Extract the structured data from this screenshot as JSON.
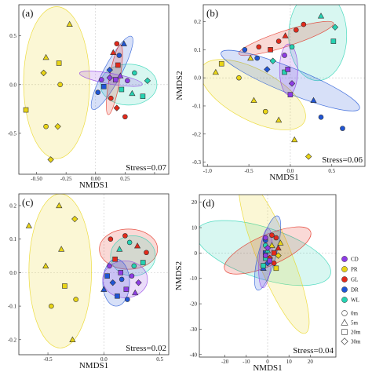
{
  "colors": {
    "CD": "#8e3ce6",
    "PR": "#e8d416",
    "GL": "#e22a1c",
    "DR": "#1f55d6",
    "WL": "#25d2b2"
  },
  "legend": {
    "groups": [
      "CD",
      "PR",
      "GL",
      "DR",
      "WL"
    ],
    "depths": [
      "0m",
      "5m",
      "20m",
      "30m"
    ],
    "depth_symbols": [
      "circle",
      "triangle",
      "square",
      "diamond"
    ]
  },
  "chart_data": [
    {
      "type": "scatter",
      "panel_label": "(a)",
      "xlabel": "NMDS1",
      "ylabel": "NMDS2",
      "annotation": "Stress=0.07",
      "xlim": [
        -0.65,
        0.62
      ],
      "ylim": [
        -0.92,
        0.82
      ],
      "xticks": [
        -0.5,
        -0.25,
        0.0,
        0.25,
        0.5
      ],
      "xtick_labels": [
        "-0.50",
        "-0.25",
        "0.00",
        "0.25",
        ""
      ],
      "yticks": [
        0.5,
        0.0,
        -0.5
      ],
      "ytick_labels": [
        "0.5",
        "0.0",
        "-0.5"
      ],
      "ellipses": [
        {
          "group": "PR",
          "cx": -0.33,
          "cy": 0.02,
          "rx": 0.28,
          "ry": 0.78,
          "angle": 0
        },
        {
          "group": "WL",
          "cx": 0.28,
          "cy": 0.0,
          "rx": 0.24,
          "ry": 0.21,
          "angle": 0
        },
        {
          "group": "DR",
          "cx": 0.14,
          "cy": 0.12,
          "rx": 0.35,
          "ry": 0.09,
          "angle": 62
        },
        {
          "group": "GL",
          "cx": 0.16,
          "cy": 0.05,
          "rx": 0.3,
          "ry": 0.055,
          "angle": 80
        },
        {
          "group": "CD",
          "cx": 0.13,
          "cy": 0.06,
          "rx": 0.27,
          "ry": 0.055,
          "angle": -10
        }
      ],
      "points": [
        {
          "group": "PR",
          "shape": "triangle",
          "x": -0.22,
          "y": 0.62
        },
        {
          "group": "PR",
          "shape": "triangle",
          "x": -0.42,
          "y": 0.28
        },
        {
          "group": "PR",
          "shape": "square",
          "x": -0.31,
          "y": 0.22
        },
        {
          "group": "PR",
          "shape": "diamond",
          "x": -0.44,
          "y": 0.12
        },
        {
          "group": "PR",
          "shape": "circle",
          "x": -0.3,
          "y": 0.0
        },
        {
          "group": "PR",
          "shape": "square",
          "x": -0.59,
          "y": -0.26
        },
        {
          "group": "PR",
          "shape": "circle",
          "x": -0.42,
          "y": -0.43
        },
        {
          "group": "PR",
          "shape": "diamond",
          "x": -0.32,
          "y": -0.43
        },
        {
          "group": "PR",
          "shape": "diamond",
          "x": -0.38,
          "y": -0.77
        },
        {
          "group": "DR",
          "shape": "circle",
          "x": 0.02,
          "y": -0.08
        },
        {
          "group": "DR",
          "shape": "square",
          "x": 0.07,
          "y": -0.02
        },
        {
          "group": "DR",
          "shape": "diamond",
          "x": 0.12,
          "y": 0.15
        },
        {
          "group": "DR",
          "shape": "circle",
          "x": 0.2,
          "y": 0.3
        },
        {
          "group": "DR",
          "shape": "triangle",
          "x": 0.24,
          "y": 0.42
        },
        {
          "group": "GL",
          "shape": "circle",
          "x": 0.18,
          "y": 0.42
        },
        {
          "group": "GL",
          "shape": "triangle",
          "x": 0.15,
          "y": 0.33
        },
        {
          "group": "GL",
          "shape": "square",
          "x": 0.19,
          "y": 0.2
        },
        {
          "group": "GL",
          "shape": "circle",
          "x": 0.13,
          "y": -0.14
        },
        {
          "group": "GL",
          "shape": "diamond",
          "x": 0.18,
          "y": -0.24
        },
        {
          "group": "GL",
          "shape": "circle",
          "x": 0.25,
          "y": -0.33
        },
        {
          "group": "CD",
          "shape": "circle",
          "x": 0.05,
          "y": 0.05
        },
        {
          "group": "CD",
          "shape": "diamond",
          "x": 0.12,
          "y": 0.07
        },
        {
          "group": "CD",
          "shape": "square",
          "x": 0.17,
          "y": 0.05
        },
        {
          "group": "CD",
          "shape": "triangle",
          "x": 0.21,
          "y": 0.09
        },
        {
          "group": "CD",
          "shape": "circle",
          "x": 0.27,
          "y": 0.04
        },
        {
          "group": "WL",
          "shape": "circle",
          "x": 0.33,
          "y": 0.12
        },
        {
          "group": "WL",
          "shape": "diamond",
          "x": 0.44,
          "y": 0.04
        },
        {
          "group": "WL",
          "shape": "square",
          "x": 0.22,
          "y": -0.05
        },
        {
          "group": "WL",
          "shape": "triangle",
          "x": 0.31,
          "y": -0.09
        },
        {
          "group": "WL",
          "shape": "square",
          "x": 0.4,
          "y": -0.12
        }
      ]
    },
    {
      "type": "scatter",
      "panel_label": "(b)",
      "xlabel": "NMDS1",
      "ylabel": "NMDS2",
      "annotation": "Stress=0.06",
      "xlim": [
        -1.05,
        0.9
      ],
      "ylim": [
        -0.315,
        0.26
      ],
      "xticks": [
        -1.0,
        -0.5,
        0.0,
        0.5
      ],
      "xtick_labels": [
        "-1.0",
        "-0.5",
        "0.0",
        "0.5"
      ],
      "yticks": [
        0.2,
        0.1,
        0.0,
        -0.1,
        -0.2,
        -0.3
      ],
      "ytick_labels": [
        "0.2",
        "0.1",
        "0.0",
        "-0.1",
        "-0.2",
        "-0.3"
      ],
      "ellipses": [
        {
          "group": "PR",
          "cx": -0.45,
          "cy": -0.06,
          "rx": 0.7,
          "ry": 0.09,
          "angle": -28
        },
        {
          "group": "WL",
          "cx": 0.33,
          "cy": 0.15,
          "rx": 0.35,
          "ry": 0.16,
          "angle": 0
        },
        {
          "group": "GL",
          "cx": -0.05,
          "cy": 0.14,
          "rx": 0.6,
          "ry": 0.028,
          "angle": 18
        },
        {
          "group": "DR",
          "cx": 0.0,
          "cy": -0.01,
          "rx": 0.9,
          "ry": 0.045,
          "angle": -22
        },
        {
          "group": "CD",
          "cx": -0.02,
          "cy": 0.03,
          "rx": 0.11,
          "ry": 0.09,
          "angle": 0
        }
      ],
      "points": [
        {
          "group": "PR",
          "shape": "square",
          "x": -0.83,
          "y": 0.05
        },
        {
          "group": "PR",
          "shape": "circle",
          "x": -0.62,
          "y": 0.0
        },
        {
          "group": "PR",
          "shape": "triangle",
          "x": -0.9,
          "y": 0.02
        },
        {
          "group": "PR",
          "shape": "triangle",
          "x": -0.44,
          "y": -0.08
        },
        {
          "group": "PR",
          "shape": "circle",
          "x": -0.3,
          "y": -0.12
        },
        {
          "group": "PR",
          "shape": "triangle",
          "x": -0.14,
          "y": -0.15
        },
        {
          "group": "PR",
          "shape": "triangle",
          "x": 0.05,
          "y": -0.22
        },
        {
          "group": "PR",
          "shape": "diamond",
          "x": 0.22,
          "y": -0.28
        },
        {
          "group": "PR",
          "shape": "triangle",
          "x": -0.48,
          "y": 0.07
        },
        {
          "group": "DR",
          "shape": "circle",
          "x": -0.55,
          "y": 0.1
        },
        {
          "group": "DR",
          "shape": "circle",
          "x": -0.4,
          "y": 0.07
        },
        {
          "group": "DR",
          "shape": "diamond",
          "x": -0.28,
          "y": 0.03
        },
        {
          "group": "DR",
          "shape": "triangle",
          "x": 0.28,
          "y": -0.08
        },
        {
          "group": "DR",
          "shape": "circle",
          "x": 0.37,
          "y": -0.14
        },
        {
          "group": "DR",
          "shape": "circle",
          "x": 0.63,
          "y": -0.18
        },
        {
          "group": "GL",
          "shape": "circle",
          "x": -0.38,
          "y": 0.11
        },
        {
          "group": "GL",
          "shape": "square",
          "x": -0.24,
          "y": 0.1
        },
        {
          "group": "GL",
          "shape": "circle",
          "x": -0.14,
          "y": 0.13
        },
        {
          "group": "GL",
          "shape": "circle",
          "x": 0.07,
          "y": 0.17
        },
        {
          "group": "GL",
          "shape": "circle",
          "x": 0.16,
          "y": 0.19
        },
        {
          "group": "GL",
          "shape": "triangle",
          "x": -0.06,
          "y": 0.15
        },
        {
          "group": "WL",
          "shape": "triangle",
          "x": 0.37,
          "y": 0.22
        },
        {
          "group": "WL",
          "shape": "diamond",
          "x": 0.54,
          "y": 0.18
        },
        {
          "group": "WL",
          "shape": "square",
          "x": 0.52,
          "y": 0.13
        },
        {
          "group": "WL",
          "shape": "circle",
          "x": 0.02,
          "y": 0.11
        },
        {
          "group": "WL",
          "shape": "diamond",
          "x": -0.21,
          "y": 0.06
        },
        {
          "group": "WL",
          "shape": "square",
          "x": -0.07,
          "y": 0.02
        },
        {
          "group": "CD",
          "shape": "circle",
          "x": -0.07,
          "y": 0.08
        },
        {
          "group": "CD",
          "shape": "square",
          "x": -0.03,
          "y": 0.03
        },
        {
          "group": "CD",
          "shape": "diamond",
          "x": 0.02,
          "y": -0.02
        },
        {
          "group": "CD",
          "shape": "square",
          "x": 0.0,
          "y": -0.06
        }
      ]
    },
    {
      "type": "scatter",
      "panel_label": "(c)",
      "xlabel": "NMDS1",
      "ylabel": "NMDS2",
      "annotation": "Stress=0.02",
      "xlim": [
        -0.76,
        0.58
      ],
      "ylim": [
        -0.245,
        0.235
      ],
      "xticks": [
        -0.5,
        0.0,
        0.5
      ],
      "xtick_labels": [
        "-0.5",
        "0.0",
        "0.5"
      ],
      "yticks": [
        0.2,
        0.1,
        0.0,
        -0.1,
        -0.2
      ],
      "ytick_labels": [
        "0.2",
        "0.1",
        "0.0",
        "-0.1",
        "-0.2"
      ],
      "ellipses": [
        {
          "group": "PR",
          "cx": -0.39,
          "cy": 0.005,
          "rx": 0.28,
          "ry": 0.23,
          "angle": 0
        },
        {
          "group": "GL",
          "cx": 0.22,
          "cy": 0.07,
          "rx": 0.26,
          "ry": 0.06,
          "angle": 0
        },
        {
          "group": "WL",
          "cx": 0.26,
          "cy": 0.05,
          "rx": 0.2,
          "ry": 0.06,
          "angle": 0
        },
        {
          "group": "DR",
          "cx": 0.11,
          "cy": -0.03,
          "rx": 0.12,
          "ry": 0.07,
          "angle": 0
        },
        {
          "group": "CD",
          "cx": 0.19,
          "cy": -0.02,
          "rx": 0.2,
          "ry": 0.055,
          "angle": 0
        }
      ],
      "points": [
        {
          "group": "PR",
          "shape": "triangle",
          "x": -0.4,
          "y": 0.2
        },
        {
          "group": "PR",
          "shape": "diamond",
          "x": -0.26,
          "y": 0.16
        },
        {
          "group": "PR",
          "shape": "triangle",
          "x": -0.67,
          "y": 0.14
        },
        {
          "group": "PR",
          "shape": "triangle",
          "x": -0.38,
          "y": 0.07
        },
        {
          "group": "PR",
          "shape": "triangle",
          "x": -0.52,
          "y": 0.02
        },
        {
          "group": "PR",
          "shape": "square",
          "x": -0.35,
          "y": -0.04
        },
        {
          "group": "PR",
          "shape": "circle",
          "x": -0.25,
          "y": -0.08
        },
        {
          "group": "PR",
          "shape": "circle",
          "x": -0.47,
          "y": -0.1
        },
        {
          "group": "PR",
          "shape": "triangle",
          "x": -0.28,
          "y": -0.2
        },
        {
          "group": "GL",
          "shape": "circle",
          "x": 0.06,
          "y": 0.1
        },
        {
          "group": "GL",
          "shape": "circle",
          "x": 0.19,
          "y": 0.11
        },
        {
          "group": "GL",
          "shape": "triangle",
          "x": 0.3,
          "y": 0.08
        },
        {
          "group": "GL",
          "shape": "circle",
          "x": 0.38,
          "y": 0.06
        },
        {
          "group": "GL",
          "shape": "square",
          "x": 0.1,
          "y": 0.04
        },
        {
          "group": "WL",
          "shape": "circle",
          "x": 0.23,
          "y": 0.09
        },
        {
          "group": "WL",
          "shape": "square",
          "x": 0.35,
          "y": 0.03
        },
        {
          "group": "WL",
          "shape": "triangle",
          "x": 0.14,
          "y": 0.07
        },
        {
          "group": "WL",
          "shape": "circle",
          "x": 0.27,
          "y": 0.02
        },
        {
          "group": "DR",
          "shape": "square",
          "x": 0.03,
          "y": -0.01
        },
        {
          "group": "DR",
          "shape": "circle",
          "x": 0.16,
          "y": -0.02
        },
        {
          "group": "DR",
          "shape": "diamond",
          "x": 0.08,
          "y": -0.03
        },
        {
          "group": "DR",
          "shape": "triangle",
          "x": 0.0,
          "y": -0.05
        },
        {
          "group": "DR",
          "shape": "square",
          "x": 0.12,
          "y": -0.07
        },
        {
          "group": "DR",
          "shape": "circle",
          "x": 0.21,
          "y": -0.08
        },
        {
          "group": "CD",
          "shape": "circle",
          "x": 0.25,
          "y": -0.01
        },
        {
          "group": "CD",
          "shape": "diamond",
          "x": 0.31,
          "y": -0.03
        },
        {
          "group": "CD",
          "shape": "square",
          "x": 0.2,
          "y": -0.05
        },
        {
          "group": "CD",
          "shape": "circle",
          "x": 0.05,
          "y": 0.02
        },
        {
          "group": "CD",
          "shape": "triangle",
          "x": 0.28,
          "y": -0.06
        },
        {
          "group": "CD",
          "shape": "square",
          "x": 0.15,
          "y": 0.0
        }
      ]
    },
    {
      "type": "scatter",
      "panel_label": "(d)",
      "xlabel": "NMDS1",
      "ylabel": "NMDS2",
      "annotation": "Stress=0.04",
      "xlim": [
        -32,
        32
      ],
      "ylim": [
        -41,
        23
      ],
      "xticks": [
        -20,
        -10,
        0,
        10,
        20
      ],
      "xtick_labels": [
        "-20",
        "-10",
        "0",
        "10",
        "20"
      ],
      "yticks": [
        20,
        10,
        0,
        -10,
        -20,
        -30,
        -40
      ],
      "ytick_labels": [
        "20",
        "10",
        "0",
        "-10",
        "-20",
        "-30",
        "-40"
      ],
      "ellipses": [
        {
          "group": "WL",
          "cx": -2,
          "cy": 0,
          "rx": 33,
          "ry": 10,
          "angle": -18
        },
        {
          "group": "PR",
          "cx": 3,
          "cy": -1,
          "rx": 8,
          "ry": 33,
          "angle": 22
        },
        {
          "group": "GL",
          "cx": 0,
          "cy": 1,
          "rx": 22,
          "ry": 6,
          "angle": 24
        },
        {
          "group": "DR",
          "cx": 0,
          "cy": 0,
          "rx": 18,
          "ry": 3.5,
          "angle": 75
        },
        {
          "group": "CD",
          "cx": -1,
          "cy": -2,
          "rx": 14,
          "ry": 2.5,
          "angle": 85
        }
      ],
      "points": [
        {
          "group": "GL",
          "shape": "circle",
          "x": 2,
          "y": 7
        },
        {
          "group": "GL",
          "shape": "circle",
          "x": 4,
          "y": 6
        },
        {
          "group": "GL",
          "shape": "triangle",
          "x": 5,
          "y": 2
        },
        {
          "group": "GL",
          "shape": "square",
          "x": 3,
          "y": 0
        },
        {
          "group": "GL",
          "shape": "diamond",
          "x": 1,
          "y": -2
        },
        {
          "group": "GL",
          "shape": "circle",
          "x": 3,
          "y": -4
        },
        {
          "group": "PR",
          "shape": "triangle",
          "x": 6,
          "y": 4
        },
        {
          "group": "PR",
          "shape": "diamond",
          "x": 5,
          "y": -1
        },
        {
          "group": "PR",
          "shape": "square",
          "x": 4,
          "y": -6
        },
        {
          "group": "PR",
          "shape": "triangle",
          "x": 2,
          "y": 3
        },
        {
          "group": "DR",
          "shape": "circle",
          "x": -1,
          "y": 5
        },
        {
          "group": "DR",
          "shape": "square",
          "x": -1,
          "y": 0
        },
        {
          "group": "DR",
          "shape": "diamond",
          "x": 0,
          "y": -4
        },
        {
          "group": "DR",
          "shape": "triangle",
          "x": -2,
          "y": -6
        },
        {
          "group": "WL",
          "shape": "circle",
          "x": -1,
          "y": 3
        },
        {
          "group": "WL",
          "shape": "triangle",
          "x": 0,
          "y": 1
        },
        {
          "group": "WL",
          "shape": "square",
          "x": -1,
          "y": -2
        },
        {
          "group": "WL",
          "shape": "square",
          "x": -2,
          "y": -5
        },
        {
          "group": "CD",
          "shape": "circle",
          "x": -1,
          "y": 6
        },
        {
          "group": "CD",
          "shape": "diamond",
          "x": 0,
          "y": 2
        },
        {
          "group": "CD",
          "shape": "circle",
          "x": -1,
          "y": -1
        },
        {
          "group": "CD",
          "shape": "square",
          "x": 1,
          "y": -3
        }
      ]
    }
  ]
}
